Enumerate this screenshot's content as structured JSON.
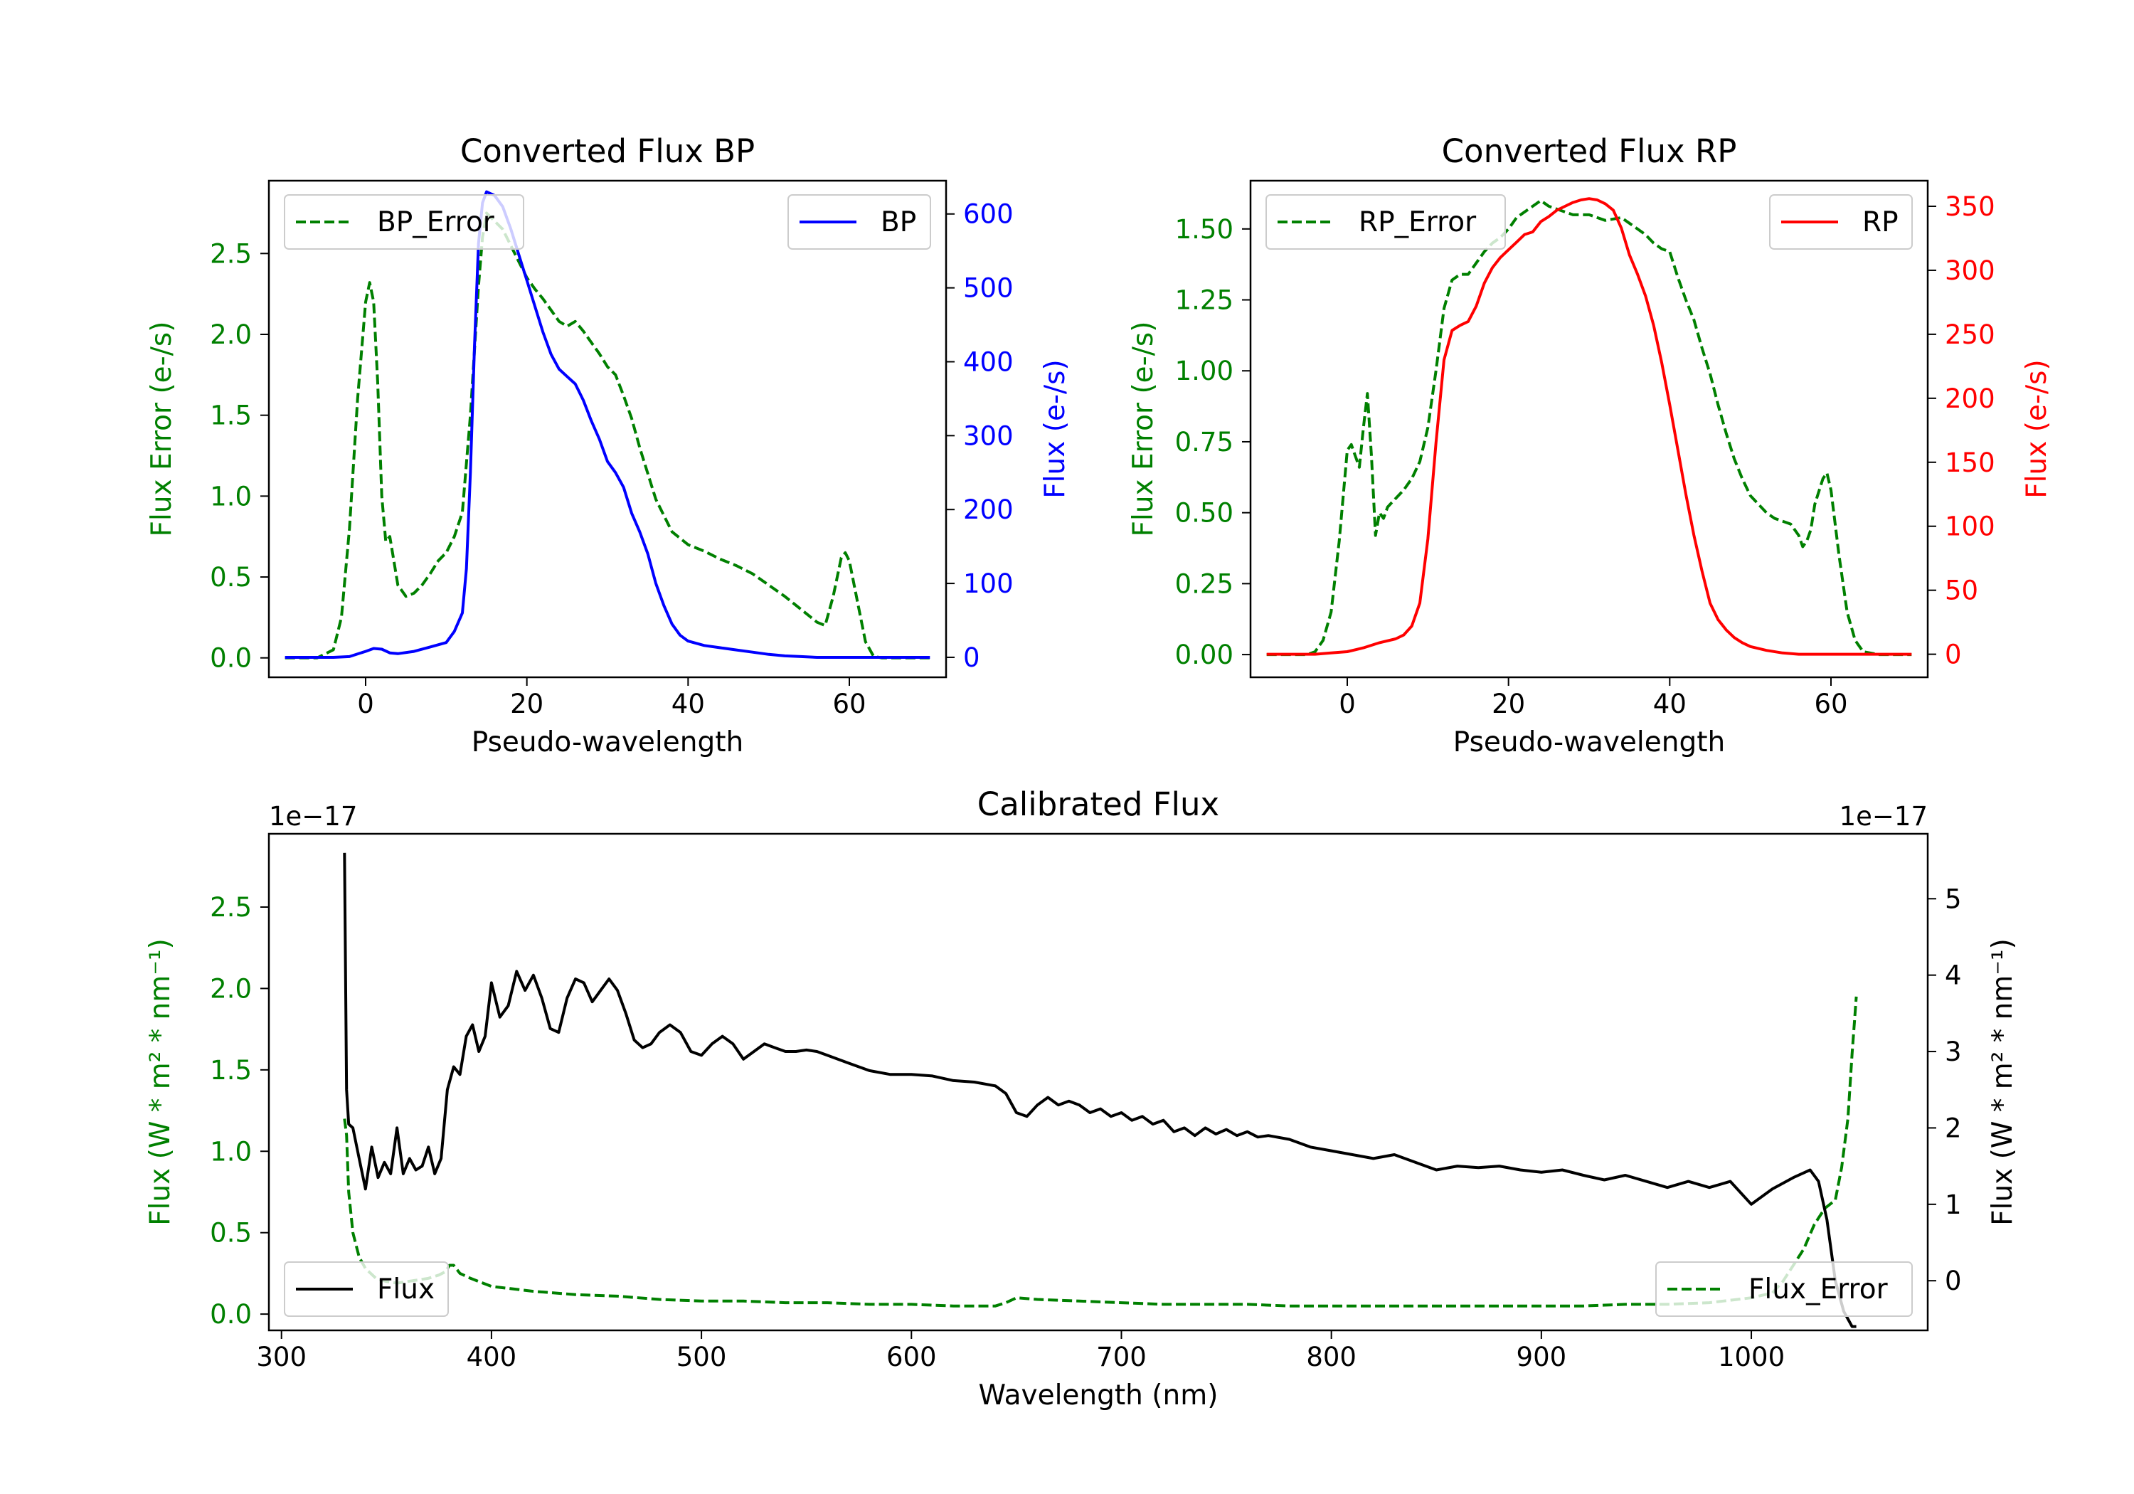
{
  "colors": {
    "error": "#008000",
    "bp": "#0000ff",
    "rp": "#ff0000",
    "flux": "#000000",
    "frame": "#000000",
    "legend_border": "#cccccc"
  },
  "chart_data": [
    {
      "id": "bp",
      "type": "line",
      "title": "Converted Flux BP",
      "xlabel": "Pseudo-wavelength",
      "ylabel_left": "Flux Error (e-/s)",
      "ylabel_right": "Flux (e-/s)",
      "xlim": [
        -12,
        72
      ],
      "ylim_left": [
        -0.12,
        2.95
      ],
      "ylim_right": [
        -27,
        645
      ],
      "xticks": [
        {
          "v": 0,
          "label": "0"
        },
        {
          "v": 20,
          "label": "20"
        },
        {
          "v": 40,
          "label": "40"
        },
        {
          "v": 60,
          "label": "60"
        }
      ],
      "yticks_left": [
        {
          "v": 0,
          "label": "0.0"
        },
        {
          "v": 0.5,
          "label": "0.5"
        },
        {
          "v": 1.0,
          "label": "1.0"
        },
        {
          "v": 1.5,
          "label": "1.5"
        },
        {
          "v": 2.0,
          "label": "2.0"
        },
        {
          "v": 2.5,
          "label": "2.5"
        }
      ],
      "yticks_right": [
        {
          "v": 0,
          "label": "0"
        },
        {
          "v": 100,
          "label": "100"
        },
        {
          "v": 200,
          "label": "200"
        },
        {
          "v": 300,
          "label": "300"
        },
        {
          "v": 400,
          "label": "400"
        },
        {
          "v": 500,
          "label": "500"
        },
        {
          "v": 600,
          "label": "600"
        }
      ],
      "legend_left": "BP_Error",
      "legend_right": "BP",
      "error_series": {
        "name": "BP_Error",
        "x": [
          -10,
          -6,
          -4,
          -3,
          -2,
          -1,
          0,
          0.5,
          1,
          1.5,
          2,
          2.5,
          3,
          3.5,
          4,
          5,
          6,
          7,
          8,
          9,
          10,
          11,
          12,
          13,
          14,
          14.5,
          15,
          16,
          17,
          18,
          19,
          20,
          21,
          22,
          23,
          24,
          25,
          26,
          27,
          28,
          29,
          30,
          31,
          32,
          33,
          34,
          36,
          38,
          40,
          42,
          44,
          46,
          48,
          50,
          52,
          54,
          56,
          57,
          58,
          59,
          59.5,
          60,
          61,
          62,
          63,
          64,
          66,
          68,
          70
        ],
        "y": [
          0.0,
          0.0,
          0.05,
          0.25,
          0.8,
          1.6,
          2.2,
          2.32,
          2.2,
          1.7,
          1.0,
          0.72,
          0.75,
          0.6,
          0.45,
          0.38,
          0.4,
          0.45,
          0.52,
          0.6,
          0.65,
          0.75,
          0.9,
          1.5,
          2.3,
          2.6,
          2.75,
          2.7,
          2.65,
          2.55,
          2.45,
          2.35,
          2.28,
          2.22,
          2.15,
          2.08,
          2.05,
          2.08,
          2.02,
          1.95,
          1.88,
          1.8,
          1.75,
          1.62,
          1.48,
          1.3,
          0.98,
          0.78,
          0.7,
          0.66,
          0.61,
          0.57,
          0.52,
          0.45,
          0.38,
          0.3,
          0.22,
          0.2,
          0.38,
          0.62,
          0.65,
          0.6,
          0.35,
          0.1,
          0.01,
          0.0,
          0.0,
          0.0,
          0.0
        ]
      },
      "flux_series": {
        "name": "BP",
        "x": [
          -10,
          -6,
          -4,
          -2,
          0,
          1,
          2,
          3,
          4,
          6,
          8,
          10,
          11,
          12,
          12.5,
          13,
          13.5,
          14,
          14.5,
          15,
          16,
          17,
          18,
          19,
          20,
          21,
          22,
          23,
          24,
          25,
          26,
          27,
          28,
          29,
          30,
          31,
          32,
          33,
          34,
          35,
          36,
          37,
          38,
          39,
          40,
          42,
          44,
          46,
          48,
          50,
          52,
          54,
          56,
          58,
          60,
          62,
          64,
          66,
          68,
          70
        ],
        "y": [
          0,
          0,
          0,
          1,
          8,
          12,
          11,
          6,
          5,
          8,
          14,
          20,
          35,
          60,
          120,
          250,
          420,
          560,
          615,
          630,
          625,
          610,
          580,
          545,
          510,
          475,
          440,
          410,
          390,
          380,
          370,
          348,
          320,
          295,
          265,
          250,
          230,
          195,
          170,
          140,
          100,
          70,
          45,
          30,
          22,
          16,
          13,
          10,
          7,
          4,
          2,
          1,
          0,
          0,
          0,
          0,
          0,
          0,
          0,
          0
        ]
      }
    },
    {
      "id": "rp",
      "type": "line",
      "title": "Converted Flux RP",
      "xlabel": "Pseudo-wavelength",
      "ylabel_left": "Flux Error (e-/s)",
      "ylabel_right": "Flux (e-/s)",
      "xlim": [
        -12,
        72
      ],
      "ylim_left": [
        -0.08,
        1.67
      ],
      "ylim_right": [
        -18,
        370
      ],
      "xticks": [
        {
          "v": 0,
          "label": "0"
        },
        {
          "v": 20,
          "label": "20"
        },
        {
          "v": 40,
          "label": "40"
        },
        {
          "v": 60,
          "label": "60"
        }
      ],
      "yticks_left": [
        {
          "v": 0,
          "label": "0.00"
        },
        {
          "v": 0.25,
          "label": "0.25"
        },
        {
          "v": 0.5,
          "label": "0.50"
        },
        {
          "v": 0.75,
          "label": "0.75"
        },
        {
          "v": 1.0,
          "label": "1.00"
        },
        {
          "v": 1.25,
          "label": "1.25"
        },
        {
          "v": 1.5,
          "label": "1.50"
        }
      ],
      "yticks_right": [
        {
          "v": 0,
          "label": "0"
        },
        {
          "v": 50,
          "label": "50"
        },
        {
          "v": 100,
          "label": "100"
        },
        {
          "v": 150,
          "label": "150"
        },
        {
          "v": 200,
          "label": "200"
        },
        {
          "v": 250,
          "label": "250"
        },
        {
          "v": 300,
          "label": "300"
        },
        {
          "v": 350,
          "label": "350"
        }
      ],
      "legend_left": "RP_Error",
      "legend_right": "RP",
      "error_series": {
        "name": "RP_Error",
        "x": [
          -10,
          -5,
          -4,
          -3,
          -2,
          -1,
          0,
          0.5,
          1,
          1.5,
          2,
          2.5,
          3,
          3.5,
          4,
          4.5,
          5,
          6,
          7,
          8,
          9,
          10,
          11,
          12,
          13,
          14,
          15,
          16,
          17,
          18,
          19,
          20,
          21,
          22,
          23,
          24,
          25,
          26,
          27,
          28,
          30,
          32,
          34,
          35,
          36,
          37,
          38,
          39,
          40,
          41,
          42,
          43,
          44,
          45,
          46,
          47,
          48,
          49,
          50,
          51,
          52,
          53,
          54,
          55,
          56,
          56.5,
          57,
          57.5,
          58,
          59,
          59.5,
          60,
          61,
          62,
          63,
          64,
          66,
          68,
          70
        ],
        "y": [
          0.0,
          0.0,
          0.01,
          0.05,
          0.15,
          0.4,
          0.72,
          0.74,
          0.7,
          0.66,
          0.8,
          0.92,
          0.7,
          0.42,
          0.5,
          0.48,
          0.52,
          0.55,
          0.58,
          0.62,
          0.68,
          0.8,
          1.0,
          1.22,
          1.32,
          1.34,
          1.34,
          1.38,
          1.42,
          1.45,
          1.47,
          1.5,
          1.54,
          1.56,
          1.58,
          1.6,
          1.58,
          1.57,
          1.56,
          1.55,
          1.55,
          1.53,
          1.54,
          1.52,
          1.5,
          1.48,
          1.45,
          1.43,
          1.42,
          1.33,
          1.25,
          1.18,
          1.08,
          0.99,
          0.88,
          0.78,
          0.69,
          0.62,
          0.56,
          0.53,
          0.5,
          0.48,
          0.47,
          0.46,
          0.42,
          0.38,
          0.4,
          0.44,
          0.53,
          0.62,
          0.64,
          0.58,
          0.35,
          0.15,
          0.05,
          0.01,
          0.0,
          0.0,
          0.0
        ]
      },
      "flux_series": {
        "name": "RP",
        "x": [
          -10,
          -4,
          -2,
          0,
          2,
          4,
          6,
          7,
          8,
          9,
          10,
          11,
          12,
          13,
          14,
          15,
          16,
          17,
          18,
          19,
          20,
          21,
          22,
          23,
          24,
          25,
          26,
          27,
          28,
          29,
          30,
          31,
          32,
          33,
          34,
          35,
          36,
          37,
          38,
          39,
          40,
          41,
          42,
          43,
          44,
          45,
          46,
          47,
          48,
          49,
          50,
          52,
          54,
          56,
          58,
          60,
          62,
          64,
          66,
          68,
          70
        ],
        "y": [
          0,
          0,
          1,
          2,
          5,
          9,
          12,
          15,
          22,
          40,
          90,
          165,
          230,
          253,
          257,
          260,
          272,
          290,
          302,
          310,
          316,
          322,
          328,
          330,
          338,
          342,
          347,
          350,
          353,
          355,
          356,
          355,
          352,
          347,
          333,
          312,
          297,
          280,
          257,
          228,
          195,
          160,
          125,
          93,
          65,
          40,
          27,
          19,
          13,
          9,
          6,
          3,
          1,
          0,
          0,
          0,
          0,
          0,
          0,
          0,
          0
        ]
      }
    },
    {
      "id": "calibrated",
      "type": "line",
      "title": "Calibrated Flux",
      "xlabel": "Wavelength (nm)",
      "ylabel_left": "Flux (W * m² * nm⁻¹)",
      "ylabel_right": "Flux (W * m² * nm⁻¹)",
      "offset_left": "1e−17",
      "offset_right": "1e−17",
      "xlim": [
        294,
        1084
      ],
      "ylim_left": [
        -0.1,
        2.95
      ],
      "ylim_right": [
        -0.65,
        5.85
      ],
      "xticks": [
        {
          "v": 300,
          "label": "300"
        },
        {
          "v": 400,
          "label": "400"
        },
        {
          "v": 500,
          "label": "500"
        },
        {
          "v": 600,
          "label": "600"
        },
        {
          "v": 700,
          "label": "700"
        },
        {
          "v": 800,
          "label": "800"
        },
        {
          "v": 900,
          "label": "900"
        },
        {
          "v": 1000,
          "label": "1000"
        }
      ],
      "yticks_left": [
        {
          "v": 0,
          "label": "0.0"
        },
        {
          "v": 0.5,
          "label": "0.5"
        },
        {
          "v": 1.0,
          "label": "1.0"
        },
        {
          "v": 1.5,
          "label": "1.5"
        },
        {
          "v": 2.0,
          "label": "2.0"
        },
        {
          "v": 2.5,
          "label": "2.5"
        }
      ],
      "yticks_right": [
        {
          "v": 0,
          "label": "0"
        },
        {
          "v": 1,
          "label": "1"
        },
        {
          "v": 2,
          "label": "2"
        },
        {
          "v": 3,
          "label": "3"
        },
        {
          "v": 4,
          "label": "4"
        },
        {
          "v": 5,
          "label": "5"
        }
      ],
      "legend_left": "Flux",
      "legend_right": "Flux_Error",
      "flux_series": {
        "name": "Flux",
        "x": [
          330,
          331,
          332,
          334,
          337,
          340,
          343,
          346,
          349,
          352,
          355,
          358,
          361,
          364,
          367,
          370,
          373,
          376,
          379,
          382,
          385,
          388,
          391,
          394,
          397,
          400,
          404,
          408,
          412,
          416,
          420,
          424,
          428,
          432,
          436,
          440,
          444,
          448,
          452,
          456,
          460,
          464,
          468,
          472,
          476,
          480,
          485,
          490,
          495,
          500,
          505,
          510,
          515,
          520,
          525,
          530,
          535,
          540,
          545,
          550,
          555,
          560,
          570,
          580,
          590,
          600,
          610,
          620,
          630,
          640,
          645,
          650,
          655,
          660,
          665,
          670,
          675,
          680,
          685,
          690,
          695,
          700,
          705,
          710,
          715,
          720,
          725,
          730,
          735,
          740,
          745,
          750,
          755,
          760,
          765,
          770,
          780,
          790,
          800,
          810,
          820,
          830,
          840,
          850,
          860,
          870,
          880,
          890,
          900,
          910,
          920,
          930,
          940,
          950,
          960,
          970,
          980,
          990,
          1000,
          1010,
          1020,
          1028,
          1032,
          1036,
          1040,
          1044,
          1048,
          1050
        ],
        "y": [
          5.6,
          2.5,
          2.05,
          2.0,
          1.6,
          1.2,
          1.75,
          1.35,
          1.55,
          1.4,
          2.0,
          1.4,
          1.6,
          1.45,
          1.5,
          1.75,
          1.4,
          1.6,
          2.5,
          2.8,
          2.7,
          3.2,
          3.35,
          3.0,
          3.2,
          3.9,
          3.45,
          3.6,
          4.05,
          3.8,
          4.0,
          3.7,
          3.3,
          3.25,
          3.7,
          3.95,
          3.9,
          3.65,
          3.8,
          3.95,
          3.8,
          3.5,
          3.15,
          3.05,
          3.1,
          3.25,
          3.35,
          3.25,
          3.0,
          2.95,
          3.1,
          3.2,
          3.1,
          2.9,
          3.0,
          3.1,
          3.05,
          3.0,
          3.0,
          3.02,
          3.0,
          2.95,
          2.85,
          2.75,
          2.7,
          2.7,
          2.68,
          2.62,
          2.6,
          2.55,
          2.45,
          2.2,
          2.15,
          2.3,
          2.4,
          2.3,
          2.35,
          2.3,
          2.2,
          2.25,
          2.15,
          2.2,
          2.1,
          2.15,
          2.05,
          2.1,
          1.95,
          2.0,
          1.9,
          2.0,
          1.92,
          1.98,
          1.9,
          1.95,
          1.88,
          1.9,
          1.85,
          1.75,
          1.7,
          1.65,
          1.6,
          1.65,
          1.55,
          1.45,
          1.5,
          1.48,
          1.5,
          1.45,
          1.42,
          1.45,
          1.38,
          1.32,
          1.38,
          1.3,
          1.22,
          1.3,
          1.22,
          1.3,
          1.0,
          1.2,
          1.35,
          1.45,
          1.3,
          0.8,
          0.0,
          -0.4,
          -0.6,
          -0.6
        ]
      },
      "error_series": {
        "name": "Flux_Error",
        "x": [
          330,
          331,
          332,
          334,
          337,
          340,
          345,
          350,
          355,
          360,
          365,
          370,
          375,
          378,
          380,
          382,
          385,
          390,
          400,
          420,
          440,
          460,
          480,
          500,
          520,
          540,
          560,
          580,
          600,
          620,
          640,
          645,
          650,
          660,
          680,
          700,
          720,
          740,
          760,
          780,
          800,
          820,
          840,
          860,
          880,
          900,
          920,
          940,
          960,
          980,
          1000,
          1010,
          1015,
          1020,
          1025,
          1030,
          1035,
          1040,
          1043,
          1046,
          1048,
          1050
        ],
        "y": [
          1.2,
          1.1,
          0.75,
          0.5,
          0.35,
          0.28,
          0.22,
          0.2,
          0.19,
          0.2,
          0.21,
          0.22,
          0.24,
          0.26,
          0.3,
          0.3,
          0.25,
          0.22,
          0.17,
          0.14,
          0.12,
          0.11,
          0.09,
          0.08,
          0.08,
          0.07,
          0.07,
          0.06,
          0.06,
          0.05,
          0.05,
          0.07,
          0.1,
          0.09,
          0.08,
          0.07,
          0.06,
          0.06,
          0.06,
          0.05,
          0.05,
          0.05,
          0.05,
          0.05,
          0.05,
          0.05,
          0.05,
          0.06,
          0.06,
          0.07,
          0.1,
          0.13,
          0.2,
          0.3,
          0.4,
          0.55,
          0.65,
          0.7,
          0.9,
          1.2,
          1.6,
          1.95
        ]
      }
    }
  ]
}
